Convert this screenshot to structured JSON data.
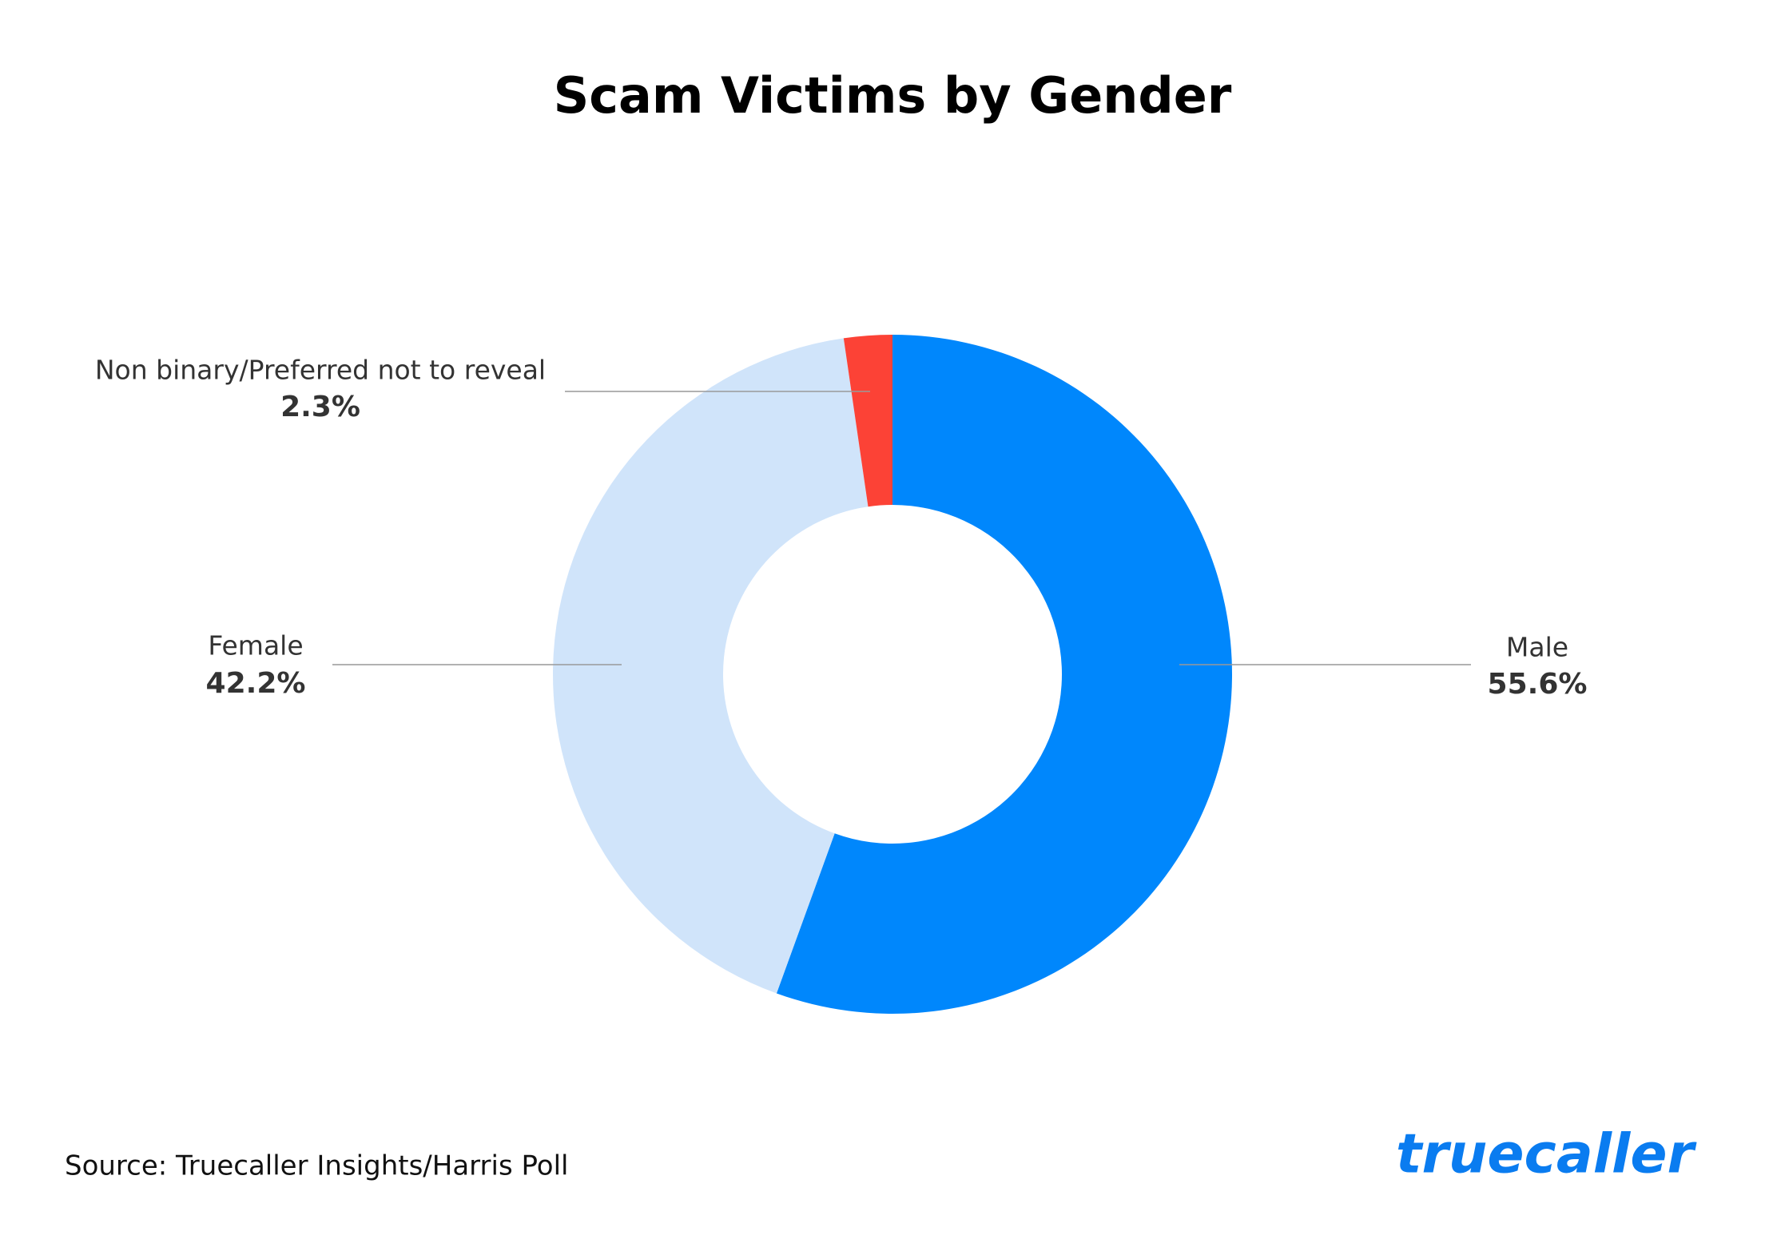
{
  "chart_data": {
    "type": "donut",
    "title": "Scam Victims by Gender",
    "categories": [
      "Male",
      "Female",
      "Non binary/Preferred not to reveal"
    ],
    "values": [
      55.6,
      42.2,
      2.3
    ],
    "value_labels": [
      "55.6%",
      "42.2%",
      "2.3%"
    ],
    "colors": [
      "#0087fc",
      "#d0e4fa",
      "#fc4236"
    ]
  },
  "footer": {
    "source": "Source: Truecaller Insights/Harris Poll",
    "logo": "truecaller"
  }
}
